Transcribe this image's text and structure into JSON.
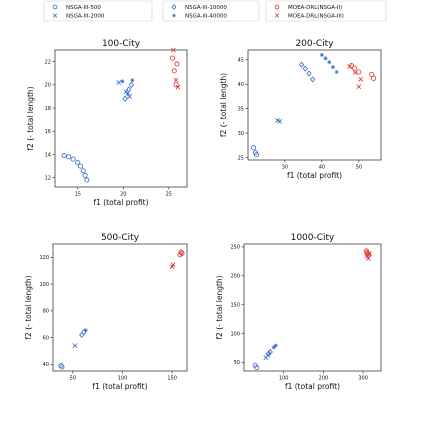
{
  "chart_data": {
    "type": "scatter",
    "colors": {
      "blue": "#3366cc",
      "red": "#e03030"
    },
    "legend": {
      "placement": "top",
      "entries": [
        {
          "label": "NSGA-III-500",
          "marker": "circle",
          "color": "#3366cc"
        },
        {
          "label": "NSGA-III-2000",
          "marker": "x",
          "color": "#3366cc"
        },
        {
          "label": "NSGA-III-10000",
          "marker": "diamond",
          "color": "#3366cc"
        },
        {
          "label": "NSGA-III-40000",
          "marker": "star",
          "color": "#3366cc"
        },
        {
          "label": "MOEA-DRL(NSGA-II)",
          "marker": "circle",
          "color": "#e03030"
        },
        {
          "label": "MOEA-DRL(NSGA-III)",
          "marker": "x",
          "color": "#e03030"
        }
      ]
    },
    "panels": [
      {
        "title": "100-City",
        "xlabel": "f1 (total profit)",
        "ylabel": "f2 (- total length)",
        "xlim": [
          12.5,
          27
        ],
        "ylim": [
          11.2,
          23
        ],
        "xticks": [
          15,
          20,
          25
        ],
        "yticks": [
          12,
          14,
          16,
          18,
          20,
          22
        ],
        "series": [
          {
            "legend_index": 0,
            "points": [
              [
                13.5,
                13.9
              ],
              [
                14.0,
                13.8
              ],
              [
                14.5,
                13.6
              ],
              [
                15.0,
                13.3
              ],
              [
                15.3,
                13.0
              ],
              [
                15.6,
                12.6
              ],
              [
                15.8,
                12.2
              ],
              [
                16.0,
                11.8
              ]
            ]
          },
          {
            "legend_index": 1,
            "points": [
              [
                19.5,
                20.2
              ],
              [
                20.3,
                19.4
              ],
              [
                20.7,
                19.0
              ]
            ]
          },
          {
            "legend_index": 2,
            "points": [
              [
                20.2,
                18.8
              ],
              [
                20.6,
                19.6
              ],
              [
                20.9,
                20.0
              ]
            ]
          },
          {
            "legend_index": 3,
            "points": [
              [
                19.9,
                20.3
              ],
              [
                20.5,
                19.2
              ],
              [
                21.0,
                20.4
              ]
            ]
          },
          {
            "legend_index": 4,
            "points": [
              [
                25.4,
                22.3
              ],
              [
                25.6,
                21.2
              ],
              [
                25.8,
                20.0
              ],
              [
                25.9,
                21.8
              ]
            ]
          },
          {
            "legend_index": 5,
            "points": [
              [
                25.5,
                23.0
              ],
              [
                25.8,
                20.4
              ],
              [
                26.0,
                19.8
              ]
            ]
          }
        ]
      },
      {
        "title": "200-City",
        "xlabel": "f1 (total profit)",
        "ylabel": "f2 (- total length)",
        "xlim": [
          20,
          56
        ],
        "ylim": [
          24.5,
          47
        ],
        "xticks": [
          30,
          40,
          50
        ],
        "yticks": [
          25,
          30,
          35,
          40,
          45
        ],
        "series": [
          {
            "legend_index": 0,
            "points": [
              [
                21.5,
                27.0
              ],
              [
                22.0,
                26.0
              ],
              [
                22.3,
                25.6
              ]
            ]
          },
          {
            "legend_index": 1,
            "points": [
              [
                28.0,
                32.6
              ],
              [
                28.6,
                32.4
              ]
            ]
          },
          {
            "legend_index": 2,
            "points": [
              [
                34.5,
                44.0
              ],
              [
                35.5,
                43.2
              ],
              [
                36.5,
                42.2
              ],
              [
                37.5,
                41.0
              ]
            ]
          },
          {
            "legend_index": 3,
            "points": [
              [
                40.0,
                46.0
              ],
              [
                41.0,
                45.3
              ],
              [
                42.0,
                44.5
              ],
              [
                43.0,
                43.5
              ],
              [
                44.0,
                42.5
              ]
            ]
          },
          {
            "legend_index": 4,
            "points": [
              [
                48.0,
                43.8
              ],
              [
                48.8,
                43.3
              ],
              [
                50.0,
                42.5
              ],
              [
                53.5,
                42.0
              ],
              [
                54.0,
                41.2
              ]
            ]
          },
          {
            "legend_index": 5,
            "points": [
              [
                47.5,
                43.6
              ],
              [
                49.0,
                42.4
              ],
              [
                50.5,
                41.0
              ],
              [
                50.0,
                39.5
              ]
            ]
          }
        ]
      },
      {
        "title": "500-City",
        "xlabel": "f1 (total profit)",
        "ylabel": "f2 (- total length)",
        "xlim": [
          30,
          165
        ],
        "ylim": [
          35,
          130
        ],
        "xticks": [
          50,
          100,
          150
        ],
        "yticks": [
          40,
          60,
          80,
          100,
          120
        ],
        "series": [
          {
            "legend_index": 0,
            "points": [
              [
                38,
                39.0
              ],
              [
                39,
                38.0
              ]
            ]
          },
          {
            "legend_index": 1,
            "points": [
              [
                52,
                54.0
              ]
            ]
          },
          {
            "legend_index": 2,
            "points": [
              [
                59,
                62.0
              ],
              [
                61,
                64.0
              ]
            ]
          },
          {
            "legend_index": 3,
            "points": [
              [
                63,
                65.5
              ]
            ]
          },
          {
            "legend_index": 4,
            "points": [
              [
                158,
                122.0
              ],
              [
                159,
                124.0
              ],
              [
                160,
                123.0
              ]
            ]
          },
          {
            "legend_index": 5,
            "points": [
              [
                150,
                113.0
              ],
              [
                151,
                114.5
              ]
            ]
          }
        ]
      },
      {
        "title": "1000-City",
        "xlabel": "f1 (total profit)",
        "ylabel": "f2 (- total length)",
        "xlim": [
          0,
          345
        ],
        "ylim": [
          35,
          255
        ],
        "xticks": [
          100,
          200,
          300
        ],
        "yticks": [
          50,
          100,
          150,
          200,
          250
        ],
        "series": [
          {
            "legend_index": 0,
            "points": [
              [
                28,
                45.0
              ],
              [
                32,
                41.0
              ]
            ]
          },
          {
            "legend_index": 1,
            "points": [
              [
                55,
                58.0
              ],
              [
                60,
                62.0
              ]
            ]
          },
          {
            "legend_index": 2,
            "points": [
              [
                62,
                65.0
              ],
              [
                66,
                68.0
              ]
            ]
          },
          {
            "legend_index": 3,
            "points": [
              [
                75,
                76.0
              ],
              [
                80,
                79.0
              ]
            ]
          },
          {
            "legend_index": 4,
            "points": [
              [
                308,
                243.0
              ],
              [
                310,
                240.0
              ],
              [
                312,
                238.0
              ],
              [
                314,
                236.0
              ]
            ]
          },
          {
            "legend_index": 5,
            "points": [
              [
                309,
                234.0
              ],
              [
                313,
                230.0
              ],
              [
                316,
                238.0
              ]
            ]
          }
        ]
      }
    ]
  }
}
